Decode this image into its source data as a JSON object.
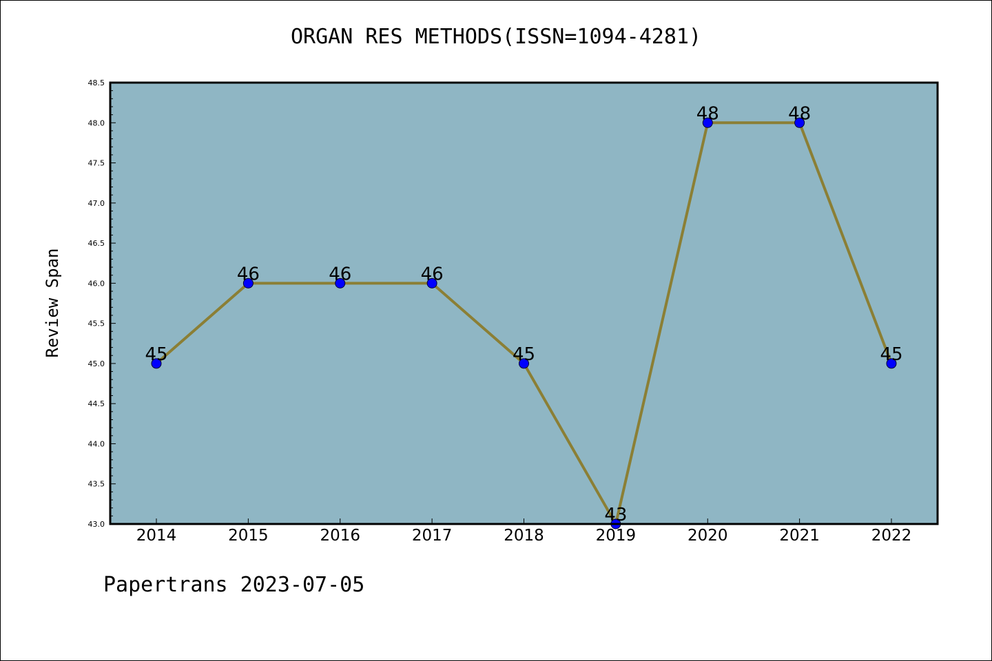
{
  "chart_data": {
    "type": "line",
    "title": "ORGAN RES METHODS(ISSN=1094-4281)",
    "xlabel": "",
    "ylabel": "Review Span",
    "categories": [
      "2014",
      "2015",
      "2016",
      "2017",
      "2018",
      "2019",
      "2020",
      "2021",
      "2022"
    ],
    "series": [
      {
        "values": [
          45,
          46,
          46,
          46,
          45,
          43,
          48,
          48,
          45
        ]
      }
    ],
    "data_labels": [
      "45",
      "46",
      "46",
      "46",
      "45",
      "43",
      "48",
      "48",
      "45"
    ],
    "ylim": [
      43.0,
      48.5
    ],
    "yticks": [
      "43.0",
      "43.5",
      "44.0",
      "44.5",
      "45.0",
      "45.5",
      "46.0",
      "46.5",
      "47.0",
      "47.5",
      "48.0",
      "48.5"
    ],
    "grid": false,
    "legend": "none",
    "colors": {
      "plot_background": "#8fb6c4",
      "line": "#8b7f35",
      "marker": "#0000ff",
      "frame": "#000000"
    }
  },
  "footer": "Papertrans 2023-07-05"
}
